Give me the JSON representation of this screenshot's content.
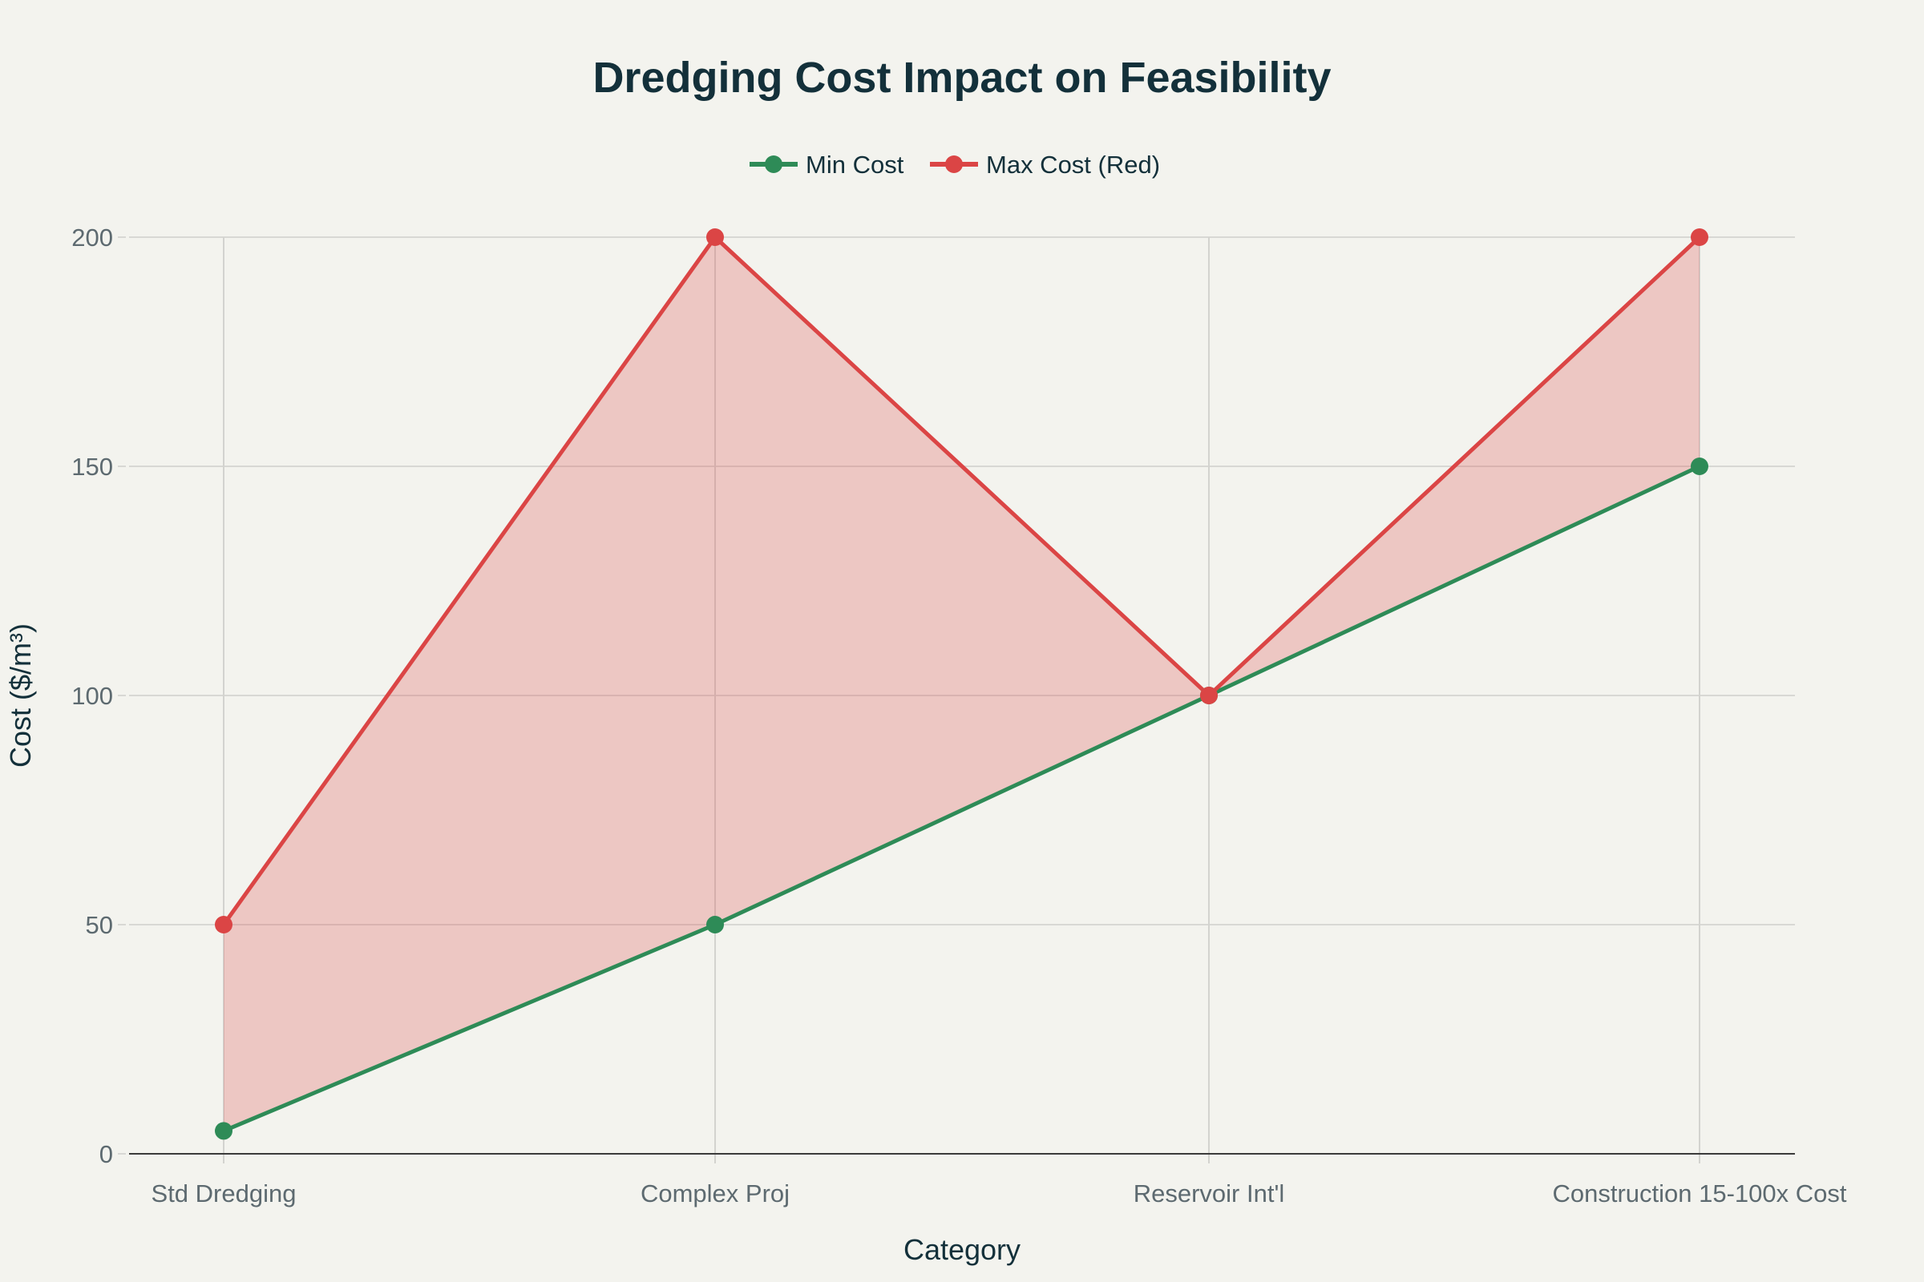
{
  "chart_data": {
    "type": "line",
    "title": "Dredging Cost Impact on Feasibility",
    "xlabel": "Category",
    "ylabel": "Cost ($/m³)",
    "categories": [
      "Std Dredging",
      "Complex Proj",
      "Reservoir Int'l",
      "Construction 15-100x Cost"
    ],
    "series": [
      {
        "name": "Min Cost",
        "values": [
          5,
          50,
          100,
          150
        ],
        "color": "#2e8b57"
      },
      {
        "name": "Max Cost (Red)",
        "values": [
          50,
          200,
          100,
          200
        ],
        "color": "#db4545",
        "fill_to_previous": true,
        "fill_color": "rgba(219,69,69,0.25)"
      }
    ],
    "ylim": [
      0,
      200
    ],
    "yticks": [
      0,
      50,
      100,
      150,
      200
    ],
    "grid": true,
    "legend_placement": "top-center"
  }
}
